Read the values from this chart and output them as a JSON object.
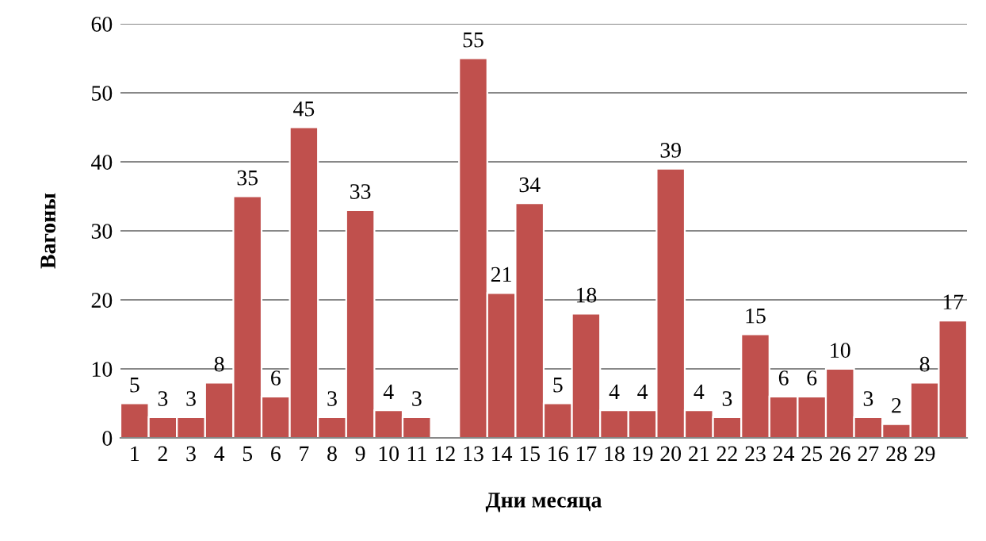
{
  "chart_data": {
    "type": "bar",
    "xlabel": "Дни месяца",
    "ylabel": "Вагоны",
    "categories": [
      "1",
      "2",
      "3",
      "4",
      "5",
      "6",
      "7",
      "8",
      "9",
      "10",
      "11",
      "12",
      "13",
      "14",
      "15",
      "16",
      "17",
      "18",
      "19",
      "20",
      "21",
      "22",
      "23",
      "24",
      "25",
      "26",
      "27",
      "28",
      "29",
      null
    ],
    "values": [
      5,
      3,
      3,
      8,
      35,
      6,
      45,
      3,
      33,
      4,
      3,
      null,
      55,
      21,
      34,
      5,
      18,
      4,
      4,
      39,
      4,
      3,
      15,
      6,
      6,
      10,
      3,
      2,
      8,
      17
    ],
    "color": "#c0504d",
    "ylim": [
      0,
      60
    ],
    "yticks": [
      0,
      10,
      20,
      30,
      40,
      50,
      60
    ],
    "grid": "y",
    "data_labels": true
  }
}
